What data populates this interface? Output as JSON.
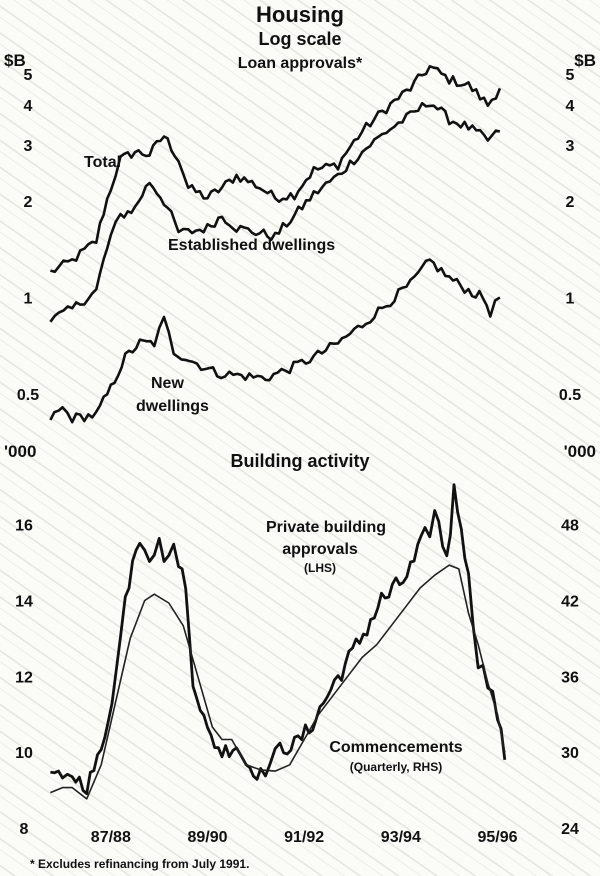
{
  "chart_data": [
    {
      "type": "line",
      "title": "Housing",
      "subtitle": "Log scale",
      "panel_title": "Loan approvals*",
      "y_unit_left": "$B",
      "y_unit_right": "$B",
      "y_scale": "log",
      "ylim": [
        0.38,
        5.6
      ],
      "y_ticks": [
        0.5,
        1,
        2,
        3,
        4,
        5
      ],
      "y_tick_labels": [
        "0.5",
        "1",
        "2",
        "3",
        "4",
        "5"
      ],
      "x_range": [
        1986.5,
        1996.1
      ],
      "series": [
        {
          "name": "Total",
          "label": "Total",
          "points": [
            [
              1986.55,
              1.2
            ],
            [
              1987.0,
              1.3
            ],
            [
              1987.5,
              1.5
            ],
            [
              1987.8,
              2.2
            ],
            [
              1988.0,
              2.7
            ],
            [
              1988.3,
              2.85
            ],
            [
              1988.6,
              2.8
            ],
            [
              1988.9,
              3.2
            ],
            [
              1989.2,
              2.7
            ],
            [
              1989.4,
              2.2
            ],
            [
              1989.8,
              2.05
            ],
            [
              1990.1,
              2.2
            ],
            [
              1990.4,
              2.4
            ],
            [
              1990.8,
              2.25
            ],
            [
              1991.2,
              2.05
            ],
            [
              1991.6,
              2.1
            ],
            [
              1992.0,
              2.5
            ],
            [
              1992.5,
              2.6
            ],
            [
              1993.0,
              3.3
            ],
            [
              1993.5,
              3.9
            ],
            [
              1994.0,
              4.5
            ],
            [
              1994.4,
              5.25
            ],
            [
              1994.8,
              4.8
            ],
            [
              1995.2,
              4.6
            ],
            [
              1995.6,
              4.0
            ],
            [
              1995.85,
              4.5
            ]
          ]
        },
        {
          "name": "Established dwellings",
          "label": "Established dwellings",
          "points": [
            [
              1986.55,
              0.85
            ],
            [
              1987.0,
              0.92
            ],
            [
              1987.5,
              1.05
            ],
            [
              1987.8,
              1.55
            ],
            [
              1988.0,
              1.8
            ],
            [
              1988.3,
              1.9
            ],
            [
              1988.6,
              2.3
            ],
            [
              1988.9,
              2.0
            ],
            [
              1989.2,
              1.6
            ],
            [
              1989.4,
              1.6
            ],
            [
              1989.8,
              1.65
            ],
            [
              1990.1,
              1.8
            ],
            [
              1990.4,
              1.65
            ],
            [
              1990.8,
              1.6
            ],
            [
              1991.2,
              1.55
            ],
            [
              1991.6,
              1.8
            ],
            [
              1992.0,
              2.1
            ],
            [
              1992.5,
              2.4
            ],
            [
              1993.0,
              2.85
            ],
            [
              1993.5,
              3.3
            ],
            [
              1994.0,
              3.7
            ],
            [
              1994.4,
              4.1
            ],
            [
              1994.8,
              3.6
            ],
            [
              1995.2,
              3.4
            ],
            [
              1995.6,
              3.1
            ],
            [
              1995.85,
              3.3
            ]
          ]
        },
        {
          "name": "New dwellings",
          "label_lines": [
            "New",
            "dwellings"
          ],
          "points": [
            [
              1986.55,
              0.42
            ],
            [
              1986.8,
              0.45
            ],
            [
              1987.0,
              0.42
            ],
            [
              1987.5,
              0.43
            ],
            [
              1987.8,
              0.52
            ],
            [
              1988.1,
              0.65
            ],
            [
              1988.4,
              0.72
            ],
            [
              1988.7,
              0.72
            ],
            [
              1988.9,
              0.85
            ],
            [
              1989.1,
              0.68
            ],
            [
              1989.5,
              0.63
            ],
            [
              1990.0,
              0.58
            ],
            [
              1990.5,
              0.57
            ],
            [
              1991.0,
              0.56
            ],
            [
              1991.5,
              0.6
            ],
            [
              1992.0,
              0.65
            ],
            [
              1992.5,
              0.72
            ],
            [
              1993.0,
              0.82
            ],
            [
              1993.5,
              0.95
            ],
            [
              1994.0,
              1.1
            ],
            [
              1994.4,
              1.3
            ],
            [
              1994.8,
              1.15
            ],
            [
              1995.2,
              1.05
            ],
            [
              1995.5,
              1.0
            ],
            [
              1995.65,
              0.9
            ],
            [
              1995.85,
              1.0
            ]
          ]
        }
      ]
    },
    {
      "type": "line",
      "panel_title": "Building activity",
      "y_unit_left": "'000",
      "y_unit_right": "'000",
      "ylim_left": [
        8,
        17.6
      ],
      "y_ticks_left": [
        8,
        10,
        12,
        14,
        16
      ],
      "y_tick_labels_left": [
        "8",
        "10",
        "12",
        "14",
        "16"
      ],
      "ylim_right": [
        24,
        52.8
      ],
      "y_ticks_right": [
        24,
        30,
        36,
        42,
        48
      ],
      "y_tick_labels_right": [
        "24",
        "30",
        "36",
        "42",
        "48"
      ],
      "x_range": [
        1986.5,
        1996.1
      ],
      "x_ticks": [
        1987.8,
        1989.8,
        1991.8,
        1993.8,
        1995.8
      ],
      "x_tick_labels": [
        "87/88",
        "89/90",
        "91/92",
        "93/94",
        "95/96"
      ],
      "series": [
        {
          "name": "Private building approvals",
          "label_lines": [
            "Private building",
            "approvals"
          ],
          "note": "(LHS)",
          "axis": "left",
          "points": [
            [
              1986.55,
              9.5
            ],
            [
              1986.8,
              9.2
            ],
            [
              1987.0,
              9.4
            ],
            [
              1987.3,
              9.1
            ],
            [
              1987.6,
              10.0
            ],
            [
              1987.9,
              12.0
            ],
            [
              1988.1,
              14.0
            ],
            [
              1988.25,
              15.2
            ],
            [
              1988.4,
              15.8
            ],
            [
              1988.6,
              15.3
            ],
            [
              1988.8,
              15.4
            ],
            [
              1989.0,
              15.2
            ],
            [
              1989.2,
              15.2
            ],
            [
              1989.35,
              14.2
            ],
            [
              1989.5,
              12.0
            ],
            [
              1989.8,
              10.5
            ],
            [
              1990.1,
              10.0
            ],
            [
              1990.4,
              10.2
            ],
            [
              1990.6,
              9.7
            ],
            [
              1990.9,
              9.4
            ],
            [
              1991.1,
              9.7
            ],
            [
              1991.3,
              10.1
            ],
            [
              1991.6,
              10.2
            ],
            [
              1991.9,
              10.6
            ],
            [
              1992.2,
              11.3
            ],
            [
              1992.5,
              12.0
            ],
            [
              1992.8,
              12.6
            ],
            [
              1993.1,
              13.3
            ],
            [
              1993.4,
              14.0
            ],
            [
              1993.7,
              14.3
            ],
            [
              1994.0,
              14.8
            ],
            [
              1994.3,
              15.6
            ],
            [
              1994.5,
              16.3
            ],
            [
              1994.75,
              15.2
            ],
            [
              1994.9,
              16.8
            ],
            [
              1995.05,
              16.2
            ],
            [
              1995.2,
              14.5
            ],
            [
              1995.4,
              12.5
            ],
            [
              1995.6,
              11.8
            ],
            [
              1995.8,
              11.0
            ],
            [
              1995.95,
              9.8
            ]
          ]
        },
        {
          "name": "Commencements",
          "label_lines": [
            "Commencements"
          ],
          "note": "(Quarterly, RHS)",
          "axis": "right",
          "points": [
            [
              1986.55,
              26.8
            ],
            [
              1986.8,
              27.2
            ],
            [
              1987.0,
              27.2
            ],
            [
              1987.3,
              26.3
            ],
            [
              1987.6,
              29.0
            ],
            [
              1987.9,
              34.0
            ],
            [
              1988.2,
              39.0
            ],
            [
              1988.5,
              42.0
            ],
            [
              1988.7,
              42.5
            ],
            [
              1989.0,
              41.8
            ],
            [
              1989.3,
              40.0
            ],
            [
              1989.6,
              36.0
            ],
            [
              1989.9,
              32.0
            ],
            [
              1990.1,
              31.0
            ],
            [
              1990.3,
              31.0
            ],
            [
              1990.6,
              29.0
            ],
            [
              1990.9,
              28.6
            ],
            [
              1991.2,
              28.5
            ],
            [
              1991.5,
              29.0
            ],
            [
              1991.8,
              31.0
            ],
            [
              1992.1,
              33.0
            ],
            [
              1992.4,
              34.5
            ],
            [
              1992.7,
              36.0
            ],
            [
              1993.0,
              37.5
            ],
            [
              1993.3,
              38.5
            ],
            [
              1993.6,
              40.0
            ],
            [
              1993.9,
              41.5
            ],
            [
              1994.2,
              43.0
            ],
            [
              1994.5,
              44.0
            ],
            [
              1994.8,
              44.8
            ],
            [
              1995.0,
              44.5
            ],
            [
              1995.2,
              41.0
            ],
            [
              1995.4,
              38.5
            ],
            [
              1995.6,
              35.5
            ],
            [
              1995.8,
              33.0
            ],
            [
              1995.95,
              30.0
            ]
          ]
        }
      ]
    }
  ],
  "footnote": "* Excludes refinancing from July 1991."
}
